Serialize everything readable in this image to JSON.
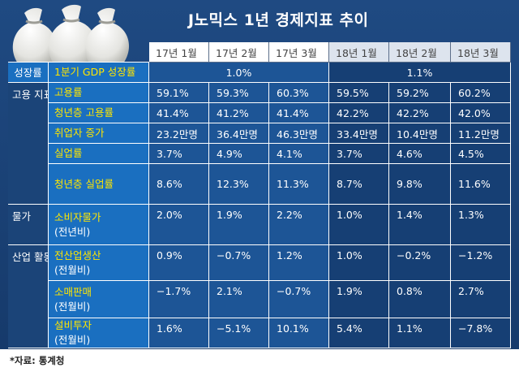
{
  "title": "J노믹스 1년 경제지표 추이",
  "source": "*자료: 통계청",
  "chart_data": {
    "type": "table",
    "columns": [
      "17년 1월",
      "17년 2월",
      "17년 3월",
      "18년 1월",
      "18년 2월",
      "18년 3월"
    ],
    "gdp": {
      "group": "성장률",
      "label": "1분기 GDP 성장률",
      "y2017": "1.0%",
      "y2018": "1.1%"
    },
    "groups": [
      {
        "label": "고용 지표",
        "rows": [
          {
            "label": "고용률",
            "sub": "",
            "values": [
              "59.1%",
              "59.3%",
              "60.3%",
              "59.5%",
              "59.2%",
              "60.2%"
            ]
          },
          {
            "label": "청년층 고용률",
            "sub": "",
            "values": [
              "41.4%",
              "41.2%",
              "41.4%",
              "42.2%",
              "42.2%",
              "42.0%"
            ]
          },
          {
            "label": "취업자 증가",
            "sub": "",
            "values": [
              "23.2만명",
              "36.4만명",
              "46.3만명",
              "33.4만명",
              "10.4만명",
              "11.2만명"
            ]
          },
          {
            "label": "실업률",
            "sub": "",
            "values": [
              "3.7%",
              "4.9%",
              "4.1%",
              "3.7%",
              "4.6%",
              "4.5%"
            ]
          },
          {
            "label": "청년층 실업률",
            "sub": "",
            "values": [
              "8.6%",
              "12.3%",
              "11.3%",
              "8.7%",
              "9.8%",
              "11.6%"
            ]
          }
        ]
      },
      {
        "label": "물가",
        "rows": [
          {
            "label": "소비자물가",
            "sub": "(전년비)",
            "values": [
              "2.0%",
              "1.9%",
              "2.2%",
              "1.0%",
              "1.4%",
              "1.3%"
            ]
          }
        ]
      },
      {
        "label": "산업 활동",
        "rows": [
          {
            "label": "전산업생산",
            "sub": "(전월비)",
            "values": [
              "0.9%",
              "−0.7%",
              "1.2%",
              "1.0%",
              "−0.2%",
              "−1.2%"
            ]
          },
          {
            "label": "소매판매",
            "sub": "(전월비)",
            "values": [
              "−1.7%",
              "2.1%",
              "−0.7%",
              "1.9%",
              "0.8%",
              "2.7%"
            ]
          },
          {
            "label": "설비투자",
            "sub": "(전월비)",
            "values": [
              "1.6%",
              "−5.1%",
              "10.1%",
              "5.4%",
              "1.1%",
              "−7.8%"
            ]
          }
        ]
      }
    ],
    "colors": {
      "background": "#1f4a82",
      "indicator_cell": "#1a6fc0",
      "indicator_text": "#ffe600",
      "header_2017": "#ffffff",
      "header_2018": "#dde4ee"
    }
  }
}
